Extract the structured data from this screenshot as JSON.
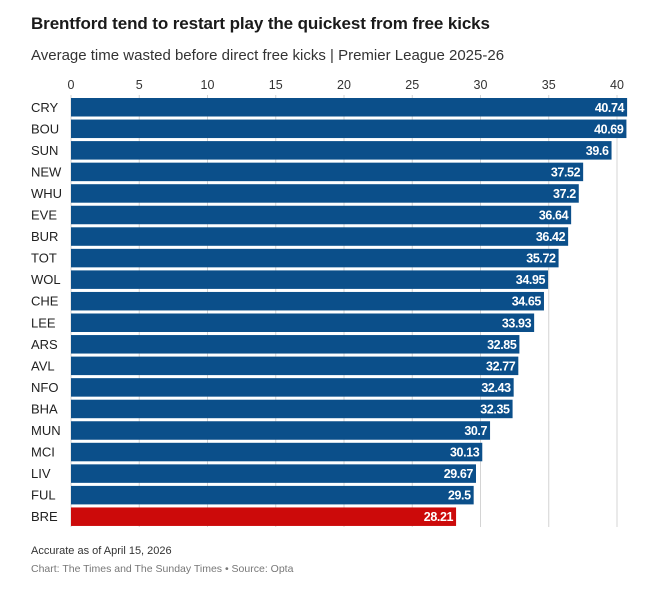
{
  "title": "Brentford tend to restart play the quickest from free kicks",
  "subtitle": "Average time wasted before direct free kicks | Premier League 2025-26",
  "note": "Accurate as of April 15, 2026",
  "source": "Chart: The Times and The Sunday Times • Source: Opta",
  "chart_data": {
    "type": "bar",
    "orientation": "horizontal",
    "categories": [
      "CRY",
      "BOU",
      "SUN",
      "NEW",
      "WHU",
      "EVE",
      "BUR",
      "TOT",
      "WOL",
      "CHE",
      "LEE",
      "ARS",
      "AVL",
      "NFO",
      "BHA",
      "MUN",
      "MCI",
      "LIV",
      "FUL",
      "BRE"
    ],
    "values": [
      40.74,
      40.69,
      39.6,
      37.52,
      37.2,
      36.64,
      36.42,
      35.72,
      34.95,
      34.65,
      33.93,
      32.85,
      32.77,
      32.43,
      32.35,
      30.7,
      30.13,
      29.67,
      29.5,
      28.21
    ],
    "value_labels": [
      "40.74",
      "40.69",
      "39.6",
      "37.52",
      "37.2",
      "36.64",
      "36.42",
      "35.72",
      "34.95",
      "34.65",
      "33.93",
      "32.85",
      "32.77",
      "32.43",
      "32.35",
      "30.7",
      "30.13",
      "29.67",
      "29.5",
      "28.21"
    ],
    "xticks": [
      0,
      5,
      10,
      15,
      20,
      25,
      30,
      35,
      40
    ],
    "xlim": [
      0,
      40
    ],
    "grid": true,
    "colors": {
      "default": "#0b4f8a",
      "highlight": "#cc0a0a",
      "highlight_category": "BRE"
    }
  }
}
